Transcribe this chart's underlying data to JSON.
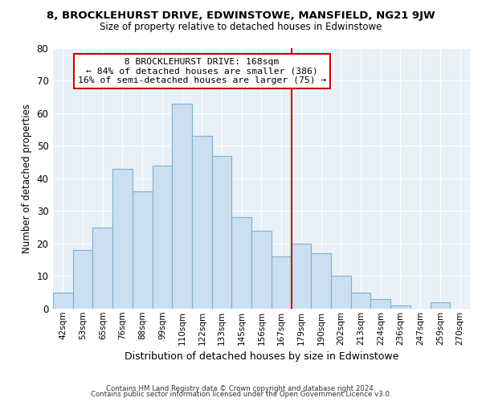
{
  "title": "8, BROCKLEHURST DRIVE, EDWINSTOWE, MANSFIELD, NG21 9JW",
  "subtitle": "Size of property relative to detached houses in Edwinstowe",
  "xlabel": "Distribution of detached houses by size in Edwinstowe",
  "ylabel": "Number of detached properties",
  "footer_line1": "Contains HM Land Registry data © Crown copyright and database right 2024.",
  "footer_line2": "Contains public sector information licensed under the Open Government Licence v3.0.",
  "bin_labels": [
    "42sqm",
    "53sqm",
    "65sqm",
    "76sqm",
    "88sqm",
    "99sqm",
    "110sqm",
    "122sqm",
    "133sqm",
    "145sqm",
    "156sqm",
    "167sqm",
    "179sqm",
    "190sqm",
    "202sqm",
    "213sqm",
    "224sqm",
    "236sqm",
    "247sqm",
    "259sqm",
    "270sqm"
  ],
  "bar_values": [
    5,
    18,
    25,
    43,
    36,
    44,
    63,
    53,
    47,
    28,
    24,
    16,
    20,
    17,
    10,
    5,
    3,
    1,
    0,
    2,
    0
  ],
  "bar_color": "#ccdff0",
  "bar_edge_color": "#7ab0d4",
  "vline_x_index": 11,
  "vline_color": "#cc0000",
  "annotation_title": "8 BROCKLEHURST DRIVE: 168sqm",
  "annotation_line1": "← 84% of detached houses are smaller (386)",
  "annotation_line2": "16% of semi-detached houses are larger (75) →",
  "annotation_box_color": "#ffffff",
  "annotation_box_edge": "#cc0000",
  "ylim": [
    0,
    80
  ],
  "yticks": [
    0,
    10,
    20,
    30,
    40,
    50,
    60,
    70,
    80
  ],
  "plot_bg_color": "#e8f0f8",
  "background_color": "#ffffff",
  "grid_color": "#ffffff"
}
